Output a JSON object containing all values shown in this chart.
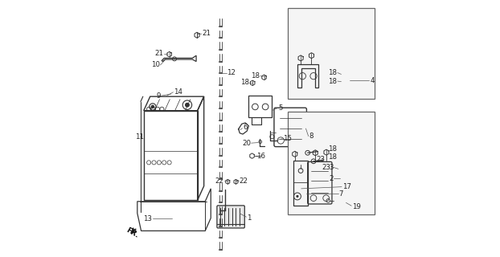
{
  "bg_color": "#ffffff",
  "line_color": "#333333",
  "fig_width": 6.22,
  "fig_height": 3.2,
  "dpi": 100
}
